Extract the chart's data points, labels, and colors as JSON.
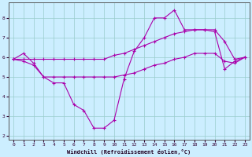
{
  "xlabel": "Windchill (Refroidissement éolien,°C)",
  "background_color": "#cceeff",
  "grid_color": "#99cccc",
  "line_color": "#aa00aa",
  "xlim": [
    -0.5,
    23.5
  ],
  "ylim": [
    1.8,
    8.8
  ],
  "yticks": [
    2,
    3,
    4,
    5,
    6,
    7,
    8
  ],
  "xticks": [
    0,
    1,
    2,
    3,
    4,
    5,
    6,
    7,
    8,
    9,
    10,
    11,
    12,
    13,
    14,
    15,
    16,
    17,
    18,
    19,
    20,
    21,
    22,
    23
  ],
  "series": [
    {
      "x": [
        0,
        1,
        2,
        3,
        4,
        5,
        6,
        7,
        8,
        9,
        10,
        11,
        12,
        13,
        14,
        15,
        16,
        17,
        18,
        19,
        20,
        21,
        22,
        23
      ],
      "y": [
        5.9,
        6.2,
        5.7,
        5.0,
        4.7,
        4.7,
        3.6,
        3.3,
        2.4,
        2.4,
        2.8,
        4.9,
        6.3,
        7.0,
        8.0,
        8.0,
        8.4,
        7.4,
        7.4,
        7.4,
        7.3,
        5.4,
        5.8,
        6.0
      ]
    },
    {
      "x": [
        0,
        1,
        2,
        3,
        4,
        5,
        6,
        7,
        8,
        9,
        10,
        11,
        12,
        13,
        14,
        15,
        16,
        17,
        18,
        19,
        20,
        21,
        22,
        23
      ],
      "y": [
        5.9,
        5.9,
        5.9,
        5.9,
        5.9,
        5.9,
        5.9,
        5.9,
        5.9,
        5.9,
        6.1,
        6.2,
        6.4,
        6.6,
        6.8,
        7.0,
        7.2,
        7.3,
        7.4,
        7.4,
        7.4,
        6.8,
        5.9,
        6.0
      ]
    },
    {
      "x": [
        0,
        1,
        2,
        3,
        4,
        5,
        6,
        7,
        8,
        9,
        10,
        11,
        12,
        13,
        14,
        15,
        16,
        17,
        18,
        19,
        20,
        21,
        22,
        23
      ],
      "y": [
        5.9,
        5.8,
        5.6,
        5.0,
        5.0,
        5.0,
        5.0,
        5.0,
        5.0,
        5.0,
        5.0,
        5.1,
        5.2,
        5.4,
        5.6,
        5.7,
        5.9,
        6.0,
        6.2,
        6.2,
        6.2,
        5.8,
        5.7,
        6.0
      ]
    }
  ]
}
